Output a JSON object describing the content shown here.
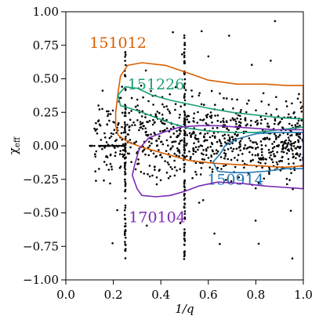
{
  "chart_data": {
    "type": "scatter",
    "xlabel": "1/q",
    "ylabel": "χ",
    "ylabel_sub": "eff",
    "xlim": [
      0.0,
      1.0
    ],
    "ylim": [
      -1.0,
      1.0
    ],
    "grid": false,
    "x_ticks": [
      0.0,
      0.2,
      0.4,
      0.6,
      0.8,
      1.0
    ],
    "x_tick_labels": [
      "0.0",
      "0.2",
      "0.4",
      "0.6",
      "0.8",
      "1.0"
    ],
    "y_ticks": [
      1.0,
      0.75,
      0.5,
      0.25,
      0.0,
      -0.25,
      -0.5,
      -0.75,
      -1.0
    ],
    "y_tick_labels": [
      "1.00",
      "0.75",
      "0.50",
      "0.25",
      "0.00",
      "−0.25",
      "−0.50",
      "−0.75",
      "−1.00"
    ],
    "sample_color": "#000000",
    "contours": [
      {
        "label": "151012",
        "color": "#d95f02",
        "label_at": [
          0.1,
          0.73
        ],
        "points": [
          [
            0.22,
            0.4
          ],
          [
            0.23,
            0.52
          ],
          [
            0.26,
            0.6
          ],
          [
            0.32,
            0.62
          ],
          [
            0.42,
            0.6
          ],
          [
            0.52,
            0.54
          ],
          [
            0.6,
            0.49
          ],
          [
            0.72,
            0.46
          ],
          [
            0.84,
            0.46
          ],
          [
            0.93,
            0.45
          ],
          [
            1.0,
            0.45
          ],
          [
            1.0,
            -0.15
          ],
          [
            0.92,
            -0.16
          ],
          [
            0.82,
            -0.15
          ],
          [
            0.72,
            -0.14
          ],
          [
            0.62,
            -0.13
          ],
          [
            0.52,
            -0.11
          ],
          [
            0.42,
            -0.06
          ],
          [
            0.32,
            -0.01
          ],
          [
            0.26,
            0.03
          ],
          [
            0.22,
            0.08
          ],
          [
            0.21,
            0.15
          ],
          [
            0.21,
            0.25
          ],
          [
            0.22,
            0.4
          ]
        ]
      },
      {
        "label": "151226",
        "color": "#1b9e77",
        "label_at": [
          0.26,
          0.42
        ],
        "points": [
          [
            0.22,
            0.38
          ],
          [
            0.25,
            0.44
          ],
          [
            0.3,
            0.43
          ],
          [
            0.36,
            0.38
          ],
          [
            0.44,
            0.34
          ],
          [
            0.52,
            0.31
          ],
          [
            0.6,
            0.28
          ],
          [
            0.7,
            0.25
          ],
          [
            0.8,
            0.23
          ],
          [
            0.9,
            0.21
          ],
          [
            1.0,
            0.2
          ],
          [
            1.0,
            0.14
          ],
          [
            0.9,
            0.12
          ],
          [
            0.8,
            0.1
          ],
          [
            0.7,
            0.1
          ],
          [
            0.6,
            0.11
          ],
          [
            0.52,
            0.13
          ],
          [
            0.44,
            0.17
          ],
          [
            0.38,
            0.21
          ],
          [
            0.32,
            0.25
          ],
          [
            0.27,
            0.28
          ],
          [
            0.23,
            0.3
          ],
          [
            0.22,
            0.38
          ]
        ]
      },
      {
        "label": "150914",
        "color": "#1f78b4",
        "label_at": [
          0.595,
          -0.29
        ],
        "points": [
          [
            0.64,
            -0.19
          ],
          [
            0.62,
            -0.12
          ],
          [
            0.65,
            -0.06
          ],
          [
            0.67,
            0.0
          ],
          [
            0.72,
            0.05
          ],
          [
            0.8,
            0.09
          ],
          [
            0.88,
            0.1
          ],
          [
            0.95,
            0.1
          ],
          [
            1.0,
            0.1
          ],
          [
            1.0,
            -0.17
          ],
          [
            0.93,
            -0.17
          ],
          [
            0.84,
            -0.19
          ],
          [
            0.76,
            -0.2
          ],
          [
            0.7,
            -0.2
          ],
          [
            0.64,
            -0.19
          ]
        ]
      },
      {
        "label": "170104",
        "color": "#7b2ab5",
        "label_at": [
          0.265,
          -0.57
        ],
        "points": [
          [
            0.3,
            -0.32
          ],
          [
            0.28,
            -0.22
          ],
          [
            0.29,
            -0.14
          ],
          [
            0.3,
            -0.08
          ],
          [
            0.31,
            -0.02
          ],
          [
            0.35,
            0.06
          ],
          [
            0.41,
            0.1
          ],
          [
            0.48,
            0.14
          ],
          [
            0.56,
            0.15
          ],
          [
            0.64,
            0.15
          ],
          [
            0.72,
            0.14
          ],
          [
            0.8,
            0.13
          ],
          [
            0.88,
            0.12
          ],
          [
            0.95,
            0.12
          ],
          [
            1.0,
            0.12
          ],
          [
            1.0,
            -0.32
          ],
          [
            0.92,
            -0.31
          ],
          [
            0.84,
            -0.3
          ],
          [
            0.74,
            -0.28
          ],
          [
            0.64,
            -0.27
          ],
          [
            0.56,
            -0.3
          ],
          [
            0.5,
            -0.34
          ],
          [
            0.44,
            -0.37
          ],
          [
            0.38,
            -0.38
          ],
          [
            0.32,
            -0.37
          ],
          [
            0.3,
            -0.32
          ]
        ]
      }
    ]
  }
}
